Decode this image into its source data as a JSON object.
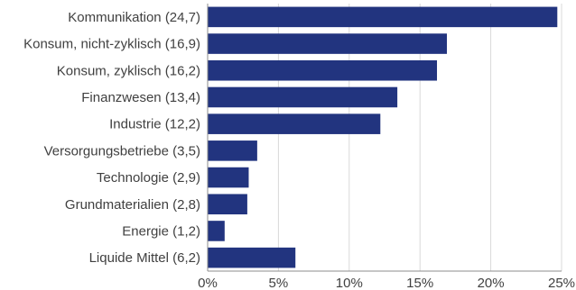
{
  "chart_data": {
    "type": "bar",
    "orientation": "horizontal",
    "categories": [
      "Kommunikation (24,7)",
      "Konsum, nicht-zyklisch (16,9)",
      "Konsum, zyklisch (16,2)",
      "Finanzwesen (13,4)",
      "Industrie (12,2)",
      "Versorgungsbetriebe (3,5)",
      "Technologie (2,9)",
      "Grundmaterialien (2,8)",
      "Energie (1,2)",
      "Liquide Mittel (6,2)"
    ],
    "values": [
      24.7,
      16.9,
      16.2,
      13.4,
      12.2,
      3.5,
      2.9,
      2.8,
      1.2,
      6.2
    ],
    "xlim": [
      0,
      25
    ],
    "xticks": [
      0,
      5,
      10,
      15,
      20,
      25
    ],
    "xtick_labels": [
      "0%",
      "5%",
      "10%",
      "15%",
      "20%",
      "25%"
    ],
    "bar_color": "#22347f",
    "grid": "vertical"
  }
}
